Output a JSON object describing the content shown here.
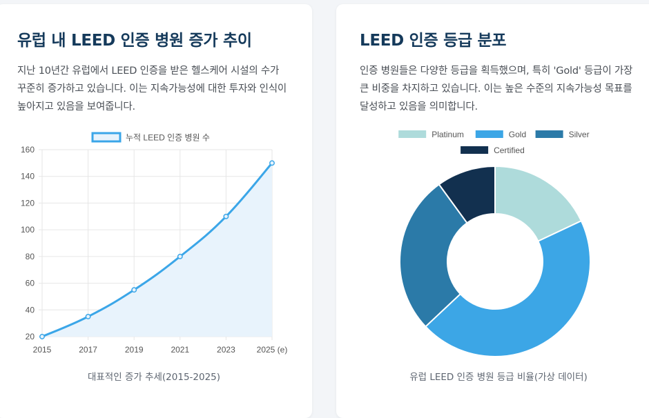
{
  "left_card": {
    "title": "유럽 내 LEED 인증 병원 증가 추이",
    "description": "지난 10년간 유럽에서 LEED 인증을 받은 헬스케어 시설의 수가 꾸준히 증가하고 있습니다. 이는 지속가능성에 대한 투자와 인식이 높아지고 있음을 보여줍니다.",
    "caption": "대표적인 증가 추세(2015-2025)"
  },
  "right_card": {
    "title": "LEED 인증 등급 분포",
    "description": "인증 병원들은 다양한 등급을 획득했으며, 특히 'Gold' 등급이 가장 큰 비중을 차지하고 있습니다. 이는 높은 수준의 지속가능성 목표를 달성하고 있음을 의미합니다.",
    "caption": "유럽 LEED 인증 병원 등급 비율(가상 데이터)"
  },
  "chart_data": [
    {
      "type": "area",
      "x": [
        "2015",
        "2017",
        "2019",
        "2021",
        "2023",
        "2025 (e)"
      ],
      "series": [
        {
          "name": "누적 LEED 인증 병원 수",
          "values": [
            20,
            35,
            55,
            80,
            110,
            150
          ],
          "color": "#3ba6e8",
          "fill": "#e8f3fc"
        }
      ],
      "ylim": [
        20,
        160
      ],
      "yticks": [
        20,
        40,
        60,
        80,
        100,
        120,
        140,
        160
      ],
      "grid": true,
      "legend": "top"
    },
    {
      "type": "pie",
      "donut": true,
      "categories": [
        "Platinum",
        "Gold",
        "Silver",
        "Certified"
      ],
      "values": [
        18,
        45,
        27,
        10
      ],
      "colors": [
        "#aedbdb",
        "#3ca6e6",
        "#2b7aa8",
        "#12304f"
      ],
      "legend": "top"
    }
  ]
}
